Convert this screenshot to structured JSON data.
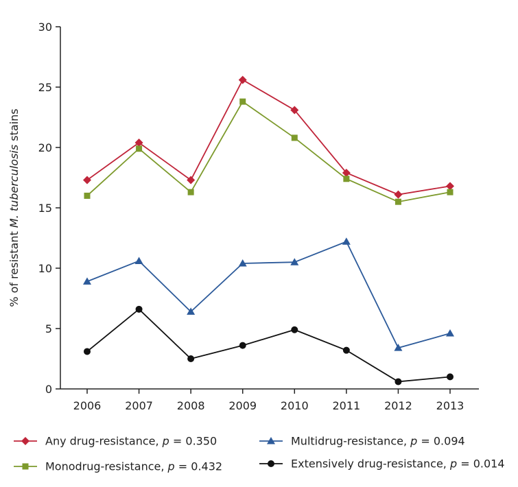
{
  "chart_data": {
    "type": "line",
    "categories": [
      "2006",
      "2007",
      "2008",
      "2009",
      "2010",
      "2011",
      "2012",
      "2013"
    ],
    "ylabel_prefix": "% of resistant ",
    "ylabel_italic": "M. tuberculosis",
    "ylabel_suffix": " stains",
    "ylim": [
      0,
      30
    ],
    "yticks": [
      "0",
      "5",
      "10",
      "15",
      "20",
      "25",
      "30"
    ],
    "grid": false,
    "legend_position": "bottom",
    "series": [
      {
        "name": "Any drug-resistance",
        "p_label": "p",
        "p_value": " = 0.350",
        "color": "#c0253a",
        "marker": "diamond",
        "values": [
          17.3,
          20.4,
          17.3,
          25.6,
          23.1,
          17.9,
          16.1,
          16.8
        ]
      },
      {
        "name": "Monodrug-resistance",
        "p_label": "p",
        "p_value": " = 0.432",
        "color": "#7d9a2c",
        "marker": "square",
        "values": [
          16.0,
          19.9,
          16.3,
          23.8,
          20.8,
          17.4,
          15.5,
          16.3
        ]
      },
      {
        "name": "Multidrug-resistance",
        "p_label": "p",
        "p_value": " = 0.094",
        "color": "#2c5a9a",
        "marker": "triangle",
        "values": [
          8.9,
          10.6,
          6.4,
          10.4,
          10.5,
          12.2,
          3.4,
          4.6
        ]
      },
      {
        "name": "Extensively drug-resistance",
        "p_label": "p",
        "p_value": " = 0.014",
        "color": "#111111",
        "marker": "circle",
        "values": [
          3.1,
          6.6,
          2.5,
          3.6,
          4.9,
          3.2,
          0.6,
          1.0
        ]
      }
    ]
  }
}
